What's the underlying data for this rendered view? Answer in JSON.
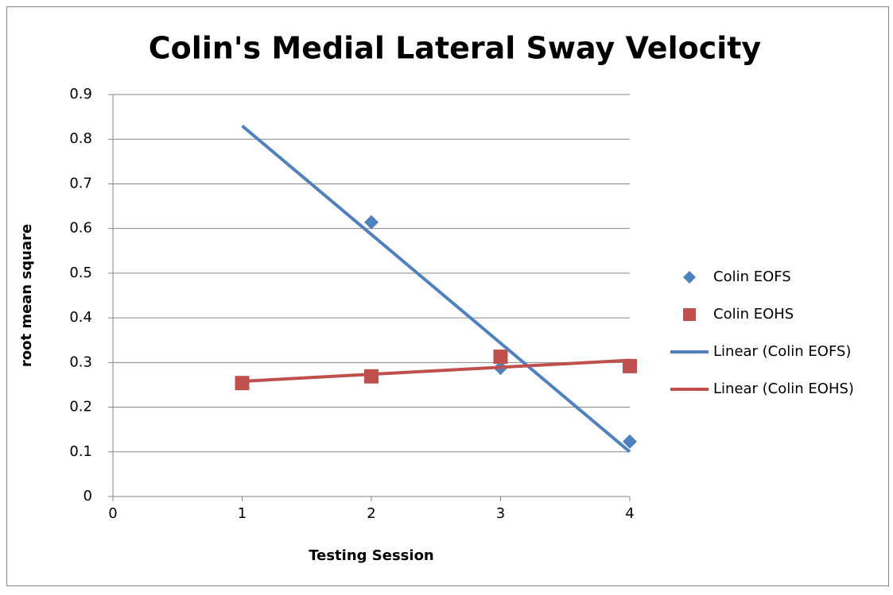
{
  "chart_data": {
    "type": "scatter",
    "title": "Colin's Medial Lateral Sway Velocity",
    "x_label": "Testing Session",
    "y_label": "root mean square",
    "xlim": [
      0,
      4
    ],
    "xticks": [
      0,
      1,
      2,
      3,
      4
    ],
    "ylim": [
      0,
      0.9
    ],
    "yticks": [
      0,
      0.1,
      0.2,
      0.3,
      0.4,
      0.5,
      0.6,
      0.7,
      0.8,
      0.9
    ],
    "grid": true,
    "legend": "right",
    "series": [
      {
        "name": "Colin EOFS",
        "color": "#4f81bd",
        "marker": "diamond",
        "x": [
          2,
          3,
          4
        ],
        "values": [
          0.614,
          0.288,
          0.123
        ]
      },
      {
        "name": "Colin EOHS",
        "color": "#c0504d",
        "marker": "square",
        "x": [
          1,
          2,
          3,
          4
        ],
        "values": [
          0.254,
          0.269,
          0.313,
          0.292
        ]
      },
      {
        "name": "Linear (Colin EOFS)",
        "color": "#4f81bd",
        "marker": "line",
        "x": [
          1,
          4
        ],
        "values": [
          0.83,
          0.1
        ]
      },
      {
        "name": "Linear (Colin EOHS)",
        "color": "#c0504d",
        "marker": "line",
        "x": [
          1,
          4
        ],
        "values": [
          0.258,
          0.305
        ]
      }
    ]
  }
}
